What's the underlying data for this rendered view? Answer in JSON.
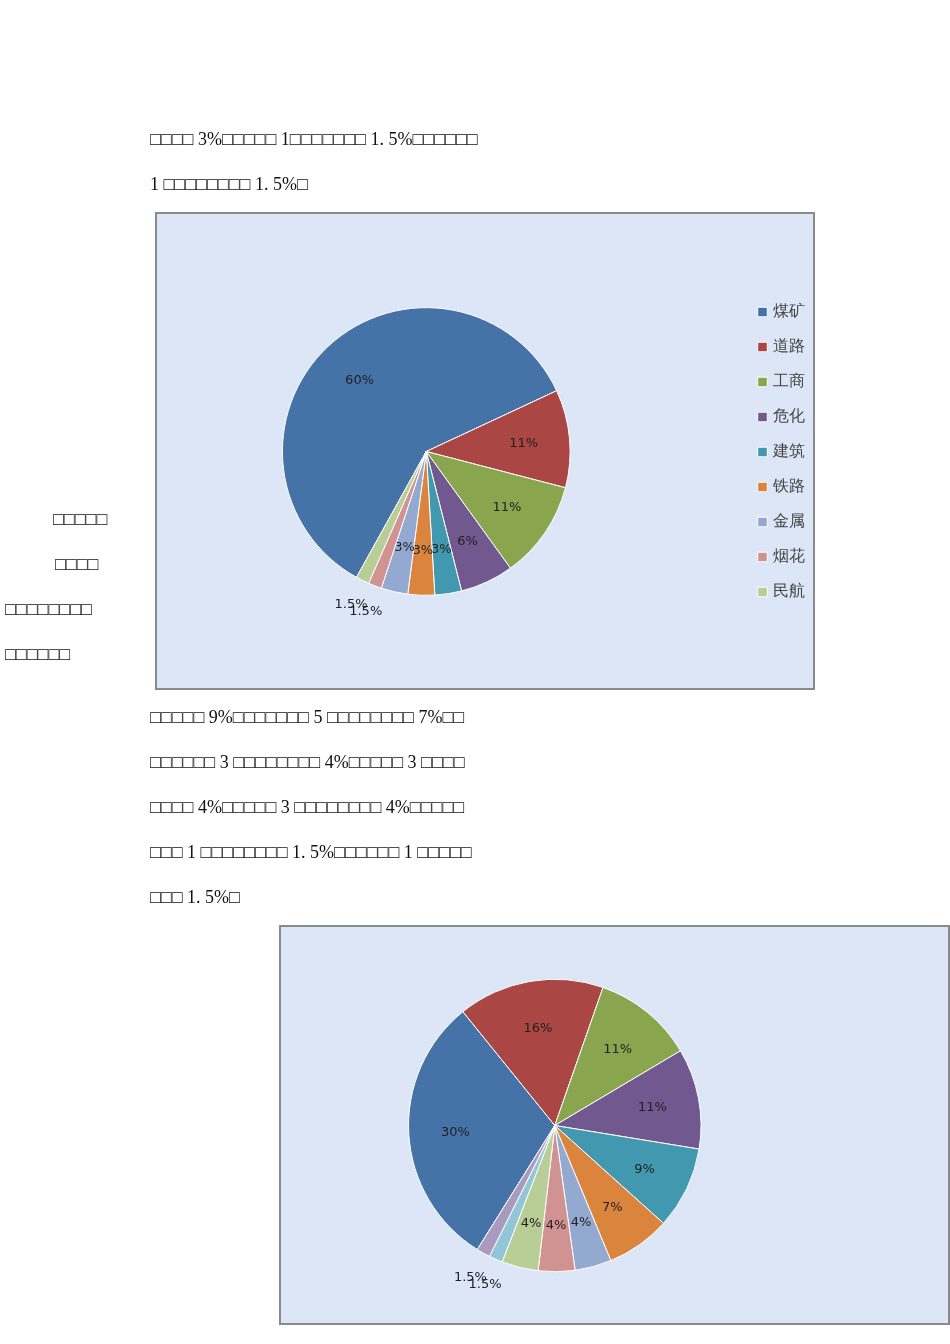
{
  "chart_data": [
    {
      "type": "pie",
      "categories": [
        "煤矿",
        "道路",
        "工商",
        "危化",
        "建筑",
        "铁路",
        "金属",
        "烟花",
        "民航"
      ],
      "values": [
        60,
        11,
        11,
        6,
        3,
        3,
        3,
        1.5,
        1.5
      ],
      "colors": [
        "#4572a7",
        "#aa4643",
        "#89a54e",
        "#71588f",
        "#4198af",
        "#db843d",
        "#93a9cf",
        "#d19392",
        "#b9cd96"
      ],
      "value_labels": [
        "60%",
        "11%",
        "11%",
        "6%",
        "3%",
        "3%",
        "3%",
        "1.5%",
        "1.5%"
      ],
      "legend": "right",
      "annotations": [
        "□□□□ 3%□□□□□ 1□□□□□□□ 1. 5%□□□□□□",
        "1 □□□□□□□□ 1. 5%□"
      ]
    },
    {
      "type": "pie",
      "categories": [
        null,
        null,
        null,
        null,
        null,
        null,
        null,
        null,
        null,
        null,
        null
      ],
      "values": [
        30,
        16,
        11,
        11,
        9,
        7,
        4,
        4,
        4,
        1.5,
        1.5
      ],
      "colors": [
        "#4572a7",
        "#aa4643",
        "#89a54e",
        "#71588f",
        "#4198af",
        "#db843d",
        "#93a9cf",
        "#d19392",
        "#b9cd96",
        "#92c5d8",
        "#a99bbd"
      ],
      "value_labels": [
        "30%",
        "16%",
        "11%",
        "11%",
        "9%",
        "7%",
        "4%",
        "4%",
        "4%",
        "1.5%",
        "1.5%"
      ],
      "annotations": [
        "□□□□□",
        "□□□□",
        "□□□□□□□□",
        "□□□□□□",
        "□□□□□ 9%□□□□□□□ 5 □□□□□□□□ 7%□□",
        "□□□□□□ 3 □□□□□□□□ 4%□□□□□ 3 □□□□",
        "□□□□ 4%□□□□□ 3 □□□□□□□□ 4%□□□□□",
        "□□□ 1 □□□□□□□□ 1. 5%□□□□□□ 1 □□□□□",
        "□□□ 1. 5%□"
      ]
    }
  ]
}
